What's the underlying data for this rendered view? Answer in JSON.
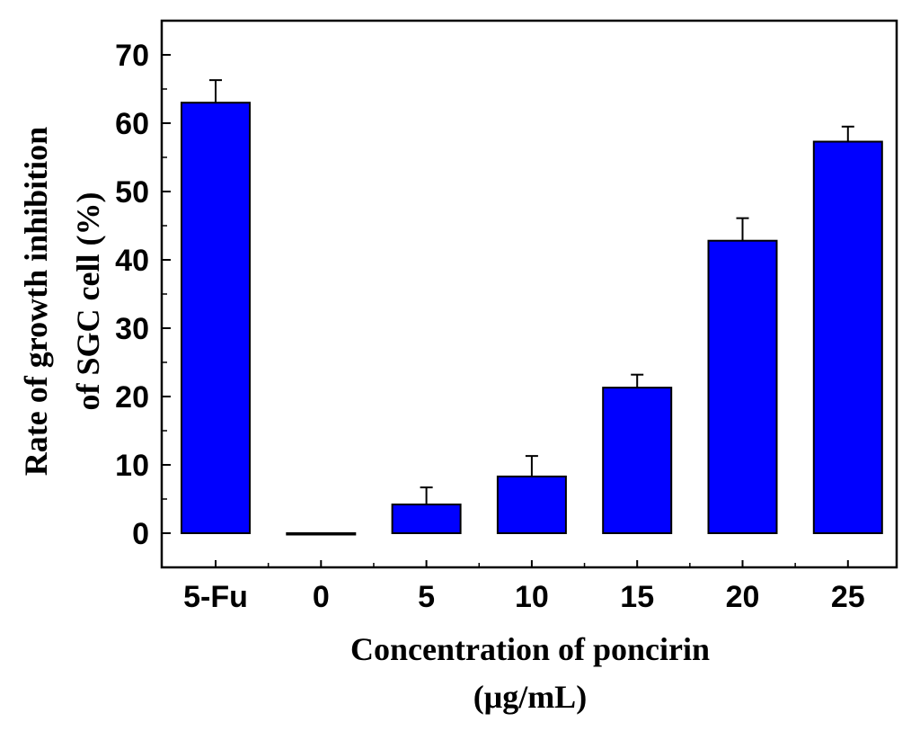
{
  "chart_data": {
    "type": "bar",
    "categories": [
      "5-Fu",
      "0",
      "5",
      "10",
      "15",
      "20",
      "25"
    ],
    "values": [
      63,
      0,
      4.2,
      8.3,
      21.3,
      42.8,
      57.3
    ],
    "errors": [
      3.3,
      0,
      2.5,
      3.0,
      1.9,
      3.3,
      2.2
    ],
    "ylabel_line1": "Rate of growth inhibition",
    "ylabel_line2": "of SGC cell (%)",
    "xlabel_line1": "Concentration of poncirin",
    "xlabel_line2": "(μg/mL)",
    "ylim": [
      -5,
      75
    ],
    "yticks": [
      0,
      10,
      20,
      30,
      40,
      50,
      60,
      70
    ],
    "grid": false,
    "bar_color": "#0000ff",
    "edge_color": "#000000"
  }
}
